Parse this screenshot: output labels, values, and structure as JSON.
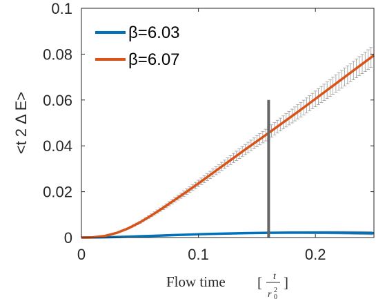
{
  "chart_data": {
    "type": "line",
    "xlim": [
      0,
      0.25
    ],
    "ylim": [
      0,
      0.1
    ],
    "x_ticks": [
      "0",
      "0.1",
      "0.2"
    ],
    "x_tick_values": [
      0,
      0.1,
      0.2
    ],
    "y_ticks": [
      "0",
      "0.02",
      "0.04",
      "0.06",
      "0.08",
      "0.1"
    ],
    "y_tick_values": [
      0,
      0.02,
      0.04,
      0.06,
      0.08,
      0.1
    ],
    "ylabel": "<t 2  Δ E>",
    "xlabel": "Flow time [t/r_0^2]",
    "xlabel_text": "Flow time",
    "legend_position": "top-left",
    "grid": false,
    "series": [
      {
        "name": "β=6.03",
        "color": "#0072bd",
        "x": [
          0,
          0.01,
          0.02,
          0.03,
          0.04,
          0.05,
          0.06,
          0.07,
          0.08,
          0.09,
          0.1,
          0.11,
          0.12,
          0.13,
          0.14,
          0.15,
          0.16,
          0.17,
          0.18,
          0.19,
          0.2,
          0.21,
          0.22,
          0.23,
          0.24,
          0.25
        ],
        "y": [
          0,
          2e-05,
          0.0001,
          0.00022,
          0.00038,
          0.00055,
          0.00073,
          0.00091,
          0.00109,
          0.00126,
          0.00142,
          0.00157,
          0.0017,
          0.00182,
          0.00192,
          0.002,
          0.00206,
          0.00211,
          0.00214,
          0.00215,
          0.00215,
          0.00213,
          0.0021,
          0.00205,
          0.00198,
          0.0019
        ],
        "err": [
          0,
          0,
          0,
          0,
          0,
          0,
          0,
          0,
          5e-05,
          7e-05,
          0.0001,
          0.00013,
          0.00016,
          0.0002,
          0.00024,
          0.00028,
          0.00032,
          0.00036,
          0.0004,
          0.00044,
          0.00048,
          0.00052,
          0.00056,
          0.0006,
          0.00064,
          0.00068
        ]
      },
      {
        "name": "β=6.07",
        "color": "#d95319",
        "x": [
          0,
          0.01,
          0.02,
          0.03,
          0.04,
          0.05,
          0.06,
          0.07,
          0.08,
          0.09,
          0.1,
          0.11,
          0.12,
          0.13,
          0.14,
          0.15,
          0.16,
          0.17,
          0.18,
          0.19,
          0.2,
          0.21,
          0.22,
          0.23,
          0.24,
          0.25
        ],
        "y": [
          0,
          0.0001,
          0.0007,
          0.002,
          0.004,
          0.0066,
          0.0097,
          0.013,
          0.0165,
          0.02,
          0.0236,
          0.0273,
          0.031,
          0.0347,
          0.0384,
          0.042,
          0.0456,
          0.0493,
          0.053,
          0.0567,
          0.0605,
          0.0643,
          0.0681,
          0.0719,
          0.0757,
          0.0795
        ],
        "err": [
          0,
          0,
          0.0001,
          0.0002,
          0.0003,
          0.0004,
          0.0006,
          0.0008,
          0.001,
          0.0012,
          0.0014,
          0.0016,
          0.0018,
          0.002,
          0.0022,
          0.0024,
          0.0026,
          0.0028,
          0.003,
          0.0032,
          0.0034,
          0.0036,
          0.0038,
          0.004,
          0.0042,
          0.0044
        ]
      }
    ],
    "vertical_marker": {
      "x": 0.16,
      "y_top": 0.06,
      "color": "#666666"
    }
  }
}
